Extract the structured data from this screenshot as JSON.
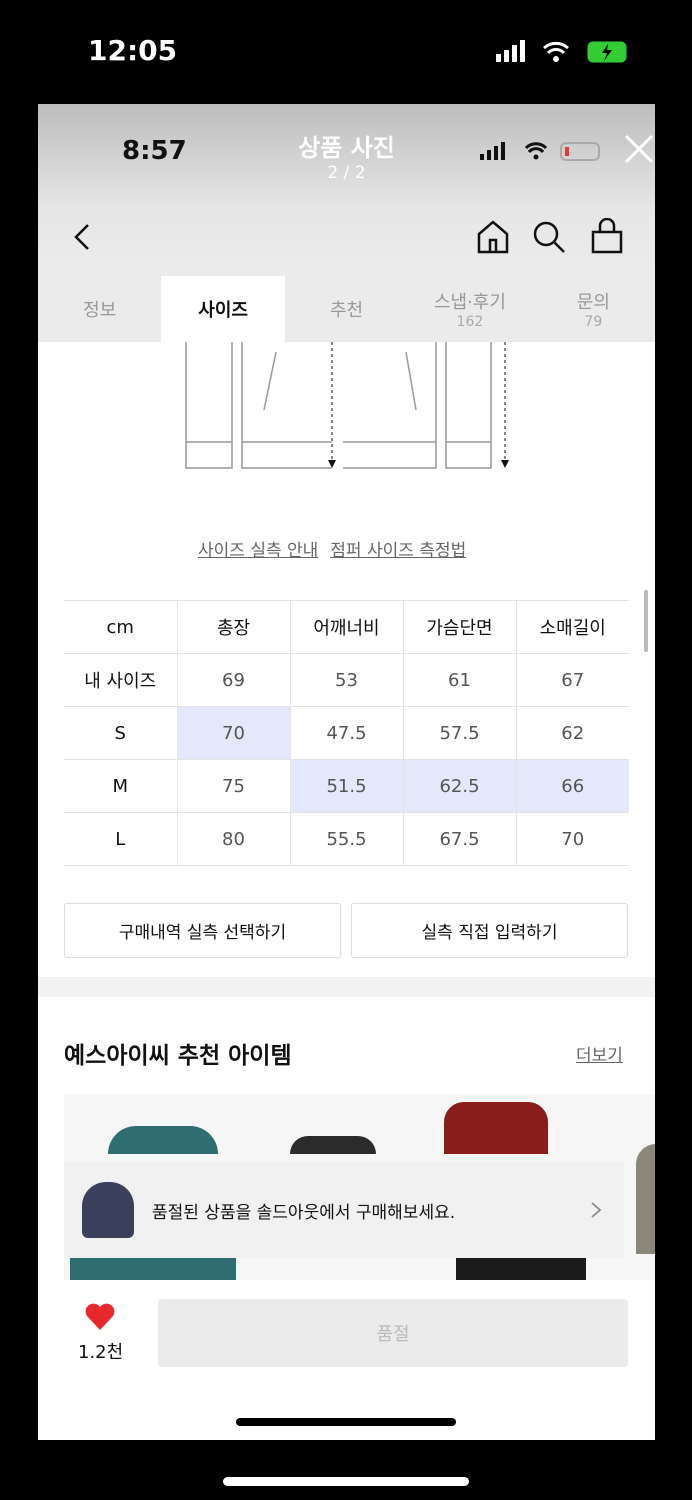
{
  "outer_status": {
    "time": "12:05"
  },
  "inner_status": {
    "time": "8:57"
  },
  "viewer": {
    "title": "상품 사진",
    "counter": "2 / 2"
  },
  "tabs": [
    {
      "label": "정보"
    },
    {
      "label": "사이즈",
      "active": true
    },
    {
      "label": "추천"
    },
    {
      "label": "스냅·후기",
      "count": "162"
    },
    {
      "label": "문의",
      "count": "79"
    }
  ],
  "links": {
    "size_guide": "사이즈 실측 안내",
    "measure_method": "점퍼 사이즈 측정법"
  },
  "size_table": {
    "headers": [
      "cm",
      "총장",
      "어깨너비",
      "가슴단면",
      "소매길이"
    ],
    "rows": [
      [
        "내 사이즈",
        "69",
        "53",
        "61",
        "67"
      ],
      [
        "S",
        "70",
        "47.5",
        "57.5",
        "62"
      ],
      [
        "M",
        "75",
        "51.5",
        "62.5",
        "66"
      ],
      [
        "L",
        "80",
        "55.5",
        "67.5",
        "70"
      ]
    ]
  },
  "buttons": {
    "purchase_history": "구매내역 실측 선택하기",
    "direct_input": "실측 직접 입력하기",
    "soldout": "품절"
  },
  "recommend": {
    "title": "예스아이씨 추천 아이템",
    "more": "더보기"
  },
  "banner": {
    "text": "품절된 상품을 솔드아웃에서 구매해보세요."
  },
  "like": {
    "count": "1.2천",
    "color": "#e8272c"
  }
}
